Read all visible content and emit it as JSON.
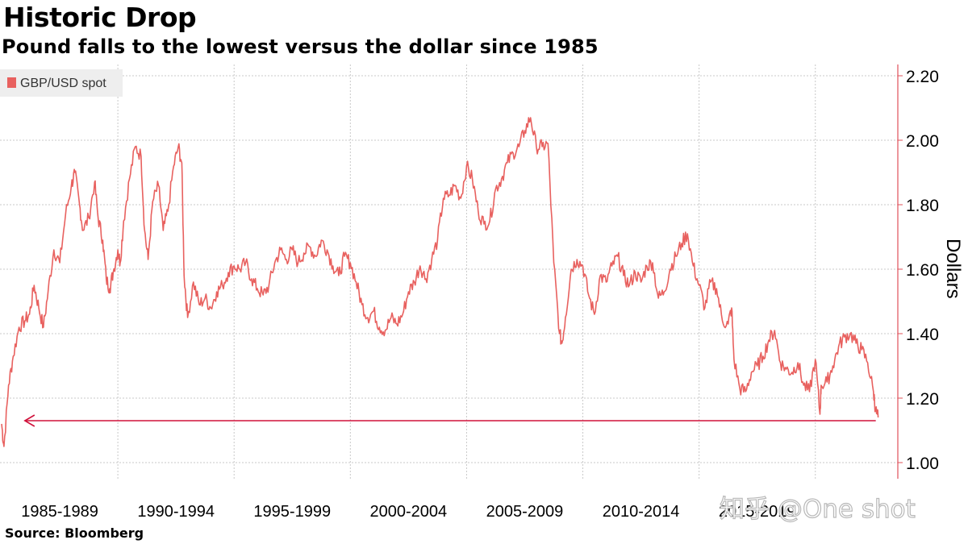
{
  "chart_data": {
    "type": "line",
    "title": "Historic Drop",
    "subtitle": "Pound falls to the lowest versus the dollar since 1985",
    "source": "Source: Bloomberg",
    "ylabel": "Dollars",
    "xlabel": "",
    "ylim": [
      1.0,
      2.2
    ],
    "xlim": [
      1985.0,
      2022.75
    ],
    "yticks": [
      "1.00",
      "1.20",
      "1.40",
      "1.60",
      "1.80",
      "2.00",
      "2.20"
    ],
    "xtick_labels": [
      "1985-1989",
      "1990-1994",
      "1995-1999",
      "2000-2004",
      "2005-2009",
      "2010-2014",
      "2015-2019"
    ],
    "grid": true,
    "legend": {
      "position": "top-left",
      "entries": [
        "GBP/USD spot"
      ]
    },
    "annotation": {
      "type": "horizontal-arrow",
      "value": 1.13,
      "from_x": 2022.6,
      "to_x": 1986.0
    },
    "series": [
      {
        "name": "GBP/USD spot",
        "color": "#e8615f",
        "points": [
          [
            1985.0,
            1.12
          ],
          [
            1985.1,
            1.05
          ],
          [
            1985.3,
            1.24
          ],
          [
            1985.5,
            1.33
          ],
          [
            1985.75,
            1.42
          ],
          [
            1986.0,
            1.44
          ],
          [
            1986.2,
            1.46
          ],
          [
            1986.4,
            1.55
          ],
          [
            1986.6,
            1.48
          ],
          [
            1986.8,
            1.42
          ],
          [
            1987.0,
            1.53
          ],
          [
            1987.25,
            1.66
          ],
          [
            1987.5,
            1.62
          ],
          [
            1987.75,
            1.77
          ],
          [
            1988.0,
            1.86
          ],
          [
            1988.15,
            1.9
          ],
          [
            1988.35,
            1.8
          ],
          [
            1988.5,
            1.72
          ],
          [
            1988.75,
            1.76
          ],
          [
            1989.0,
            1.87
          ],
          [
            1989.15,
            1.76
          ],
          [
            1989.35,
            1.69
          ],
          [
            1989.5,
            1.57
          ],
          [
            1989.65,
            1.54
          ],
          [
            1989.8,
            1.59
          ],
          [
            1990.0,
            1.66
          ],
          [
            1990.1,
            1.62
          ],
          [
            1990.25,
            1.75
          ],
          [
            1990.5,
            1.88
          ],
          [
            1990.75,
            1.98
          ],
          [
            1991.0,
            1.95
          ],
          [
            1991.15,
            1.72
          ],
          [
            1991.3,
            1.63
          ],
          [
            1991.5,
            1.81
          ],
          [
            1991.75,
            1.86
          ],
          [
            1991.95,
            1.72
          ],
          [
            1992.15,
            1.78
          ],
          [
            1992.4,
            1.92
          ],
          [
            1992.6,
            1.98
          ],
          [
            1992.75,
            1.93
          ],
          [
            1992.85,
            1.58
          ],
          [
            1993.0,
            1.45
          ],
          [
            1993.25,
            1.56
          ],
          [
            1993.5,
            1.49
          ],
          [
            1993.75,
            1.51
          ],
          [
            1994.0,
            1.48
          ],
          [
            1994.25,
            1.53
          ],
          [
            1994.5,
            1.55
          ],
          [
            1994.75,
            1.59
          ],
          [
            1995.0,
            1.61
          ],
          [
            1995.25,
            1.6
          ],
          [
            1995.5,
            1.62
          ],
          [
            1995.75,
            1.57
          ],
          [
            1996.0,
            1.54
          ],
          [
            1996.25,
            1.52
          ],
          [
            1996.5,
            1.55
          ],
          [
            1996.75,
            1.62
          ],
          [
            1997.0,
            1.66
          ],
          [
            1997.25,
            1.63
          ],
          [
            1997.5,
            1.66
          ],
          [
            1997.75,
            1.62
          ],
          [
            1998.0,
            1.65
          ],
          [
            1998.25,
            1.67
          ],
          [
            1998.5,
            1.64
          ],
          [
            1998.75,
            1.69
          ],
          [
            1999.0,
            1.66
          ],
          [
            1999.25,
            1.61
          ],
          [
            1999.5,
            1.58
          ],
          [
            1999.75,
            1.64
          ],
          [
            2000.0,
            1.62
          ],
          [
            2000.25,
            1.56
          ],
          [
            2000.5,
            1.49
          ],
          [
            2000.75,
            1.45
          ],
          [
            2001.0,
            1.47
          ],
          [
            2001.25,
            1.42
          ],
          [
            2001.5,
            1.41
          ],
          [
            2001.75,
            1.45
          ],
          [
            2002.0,
            1.43
          ],
          [
            2002.25,
            1.46
          ],
          [
            2002.5,
            1.53
          ],
          [
            2002.75,
            1.56
          ],
          [
            2003.0,
            1.61
          ],
          [
            2003.25,
            1.57
          ],
          [
            2003.5,
            1.63
          ],
          [
            2003.75,
            1.69
          ],
          [
            2004.0,
            1.82
          ],
          [
            2004.25,
            1.83
          ],
          [
            2004.5,
            1.86
          ],
          [
            2004.75,
            1.82
          ],
          [
            2005.0,
            1.92
          ],
          [
            2005.25,
            1.88
          ],
          [
            2005.5,
            1.78
          ],
          [
            2005.75,
            1.74
          ],
          [
            2006.0,
            1.75
          ],
          [
            2006.25,
            1.85
          ],
          [
            2006.5,
            1.88
          ],
          [
            2006.75,
            1.93
          ],
          [
            2007.0,
            1.96
          ],
          [
            2007.25,
            1.98
          ],
          [
            2007.5,
            2.03
          ],
          [
            2007.75,
            2.07
          ],
          [
            2008.0,
            1.98
          ],
          [
            2008.25,
            1.98
          ],
          [
            2008.5,
            1.99
          ],
          [
            2008.75,
            1.62
          ],
          [
            2009.0,
            1.4
          ],
          [
            2009.1,
            1.37
          ],
          [
            2009.25,
            1.45
          ],
          [
            2009.5,
            1.6
          ],
          [
            2009.75,
            1.63
          ],
          [
            2010.0,
            1.61
          ],
          [
            2010.25,
            1.52
          ],
          [
            2010.5,
            1.46
          ],
          [
            2010.75,
            1.58
          ],
          [
            2011.0,
            1.56
          ],
          [
            2011.25,
            1.61
          ],
          [
            2011.5,
            1.64
          ],
          [
            2011.75,
            1.58
          ],
          [
            2012.0,
            1.55
          ],
          [
            2012.25,
            1.59
          ],
          [
            2012.5,
            1.56
          ],
          [
            2012.75,
            1.61
          ],
          [
            2013.0,
            1.62
          ],
          [
            2013.25,
            1.51
          ],
          [
            2013.5,
            1.53
          ],
          [
            2013.75,
            1.6
          ],
          [
            2014.0,
            1.64
          ],
          [
            2014.25,
            1.68
          ],
          [
            2014.5,
            1.71
          ],
          [
            2014.75,
            1.61
          ],
          [
            2015.0,
            1.55
          ],
          [
            2015.25,
            1.48
          ],
          [
            2015.5,
            1.56
          ],
          [
            2015.75,
            1.54
          ],
          [
            2016.0,
            1.44
          ],
          [
            2016.25,
            1.43
          ],
          [
            2016.4,
            1.48
          ],
          [
            2016.5,
            1.32
          ],
          [
            2016.75,
            1.23
          ],
          [
            2017.0,
            1.22
          ],
          [
            2017.25,
            1.28
          ],
          [
            2017.5,
            1.3
          ],
          [
            2017.75,
            1.33
          ],
          [
            2018.0,
            1.38
          ],
          [
            2018.25,
            1.41
          ],
          [
            2018.5,
            1.31
          ],
          [
            2018.75,
            1.29
          ],
          [
            2019.0,
            1.28
          ],
          [
            2019.25,
            1.31
          ],
          [
            2019.5,
            1.24
          ],
          [
            2019.75,
            1.22
          ],
          [
            2020.0,
            1.32
          ],
          [
            2020.2,
            1.15
          ],
          [
            2020.25,
            1.24
          ],
          [
            2020.5,
            1.25
          ],
          [
            2020.75,
            1.3
          ],
          [
            2021.0,
            1.36
          ],
          [
            2021.25,
            1.39
          ],
          [
            2021.5,
            1.4
          ],
          [
            2021.75,
            1.37
          ],
          [
            2022.0,
            1.35
          ],
          [
            2022.25,
            1.31
          ],
          [
            2022.5,
            1.22
          ],
          [
            2022.6,
            1.16
          ],
          [
            2022.7,
            1.14
          ]
        ]
      }
    ]
  },
  "watermark": "知乎 @One shot"
}
